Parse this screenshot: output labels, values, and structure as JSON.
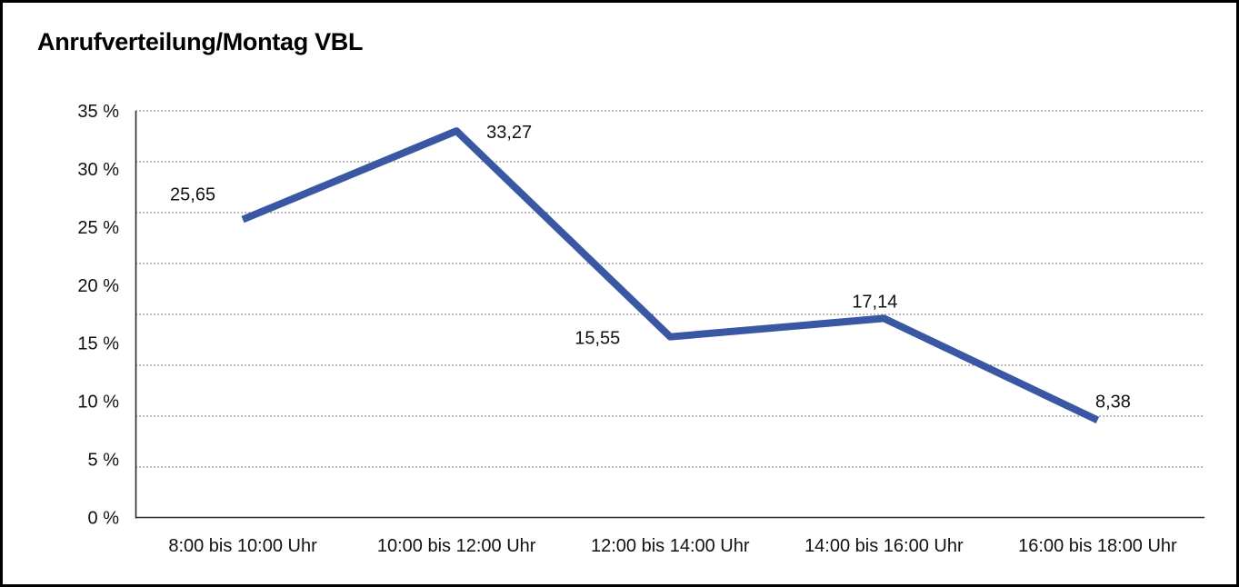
{
  "chart_data": {
    "type": "line",
    "title": "Anrufverteilung/Montag VBL",
    "categories": [
      "8:00 bis 10:00 Uhr",
      "10:00 bis 12:00 Uhr",
      "12:00 bis 14:00 Uhr",
      "14:00 bis 16:00 Uhr",
      "16:00 bis 18:00 Uhr"
    ],
    "values": [
      25.65,
      33.27,
      15.55,
      17.14,
      8.38
    ],
    "value_labels": [
      "25,65",
      "33,27",
      "15,55",
      "17,14",
      "8,38"
    ],
    "xlabel": "",
    "ylabel": "",
    "ylim": [
      0,
      35
    ],
    "y_tick_step": 5,
    "y_tick_labels": [
      "0 %",
      "5 %",
      "10 %",
      "15 %",
      "20 %",
      "25 %",
      "30 %",
      "35 %"
    ],
    "legend": "none",
    "grid": "horizontal-dotted",
    "line_color": "#3a57a3",
    "axis_color": "#2b2b2b",
    "grid_color": "#666666",
    "text_color": "#111111"
  }
}
